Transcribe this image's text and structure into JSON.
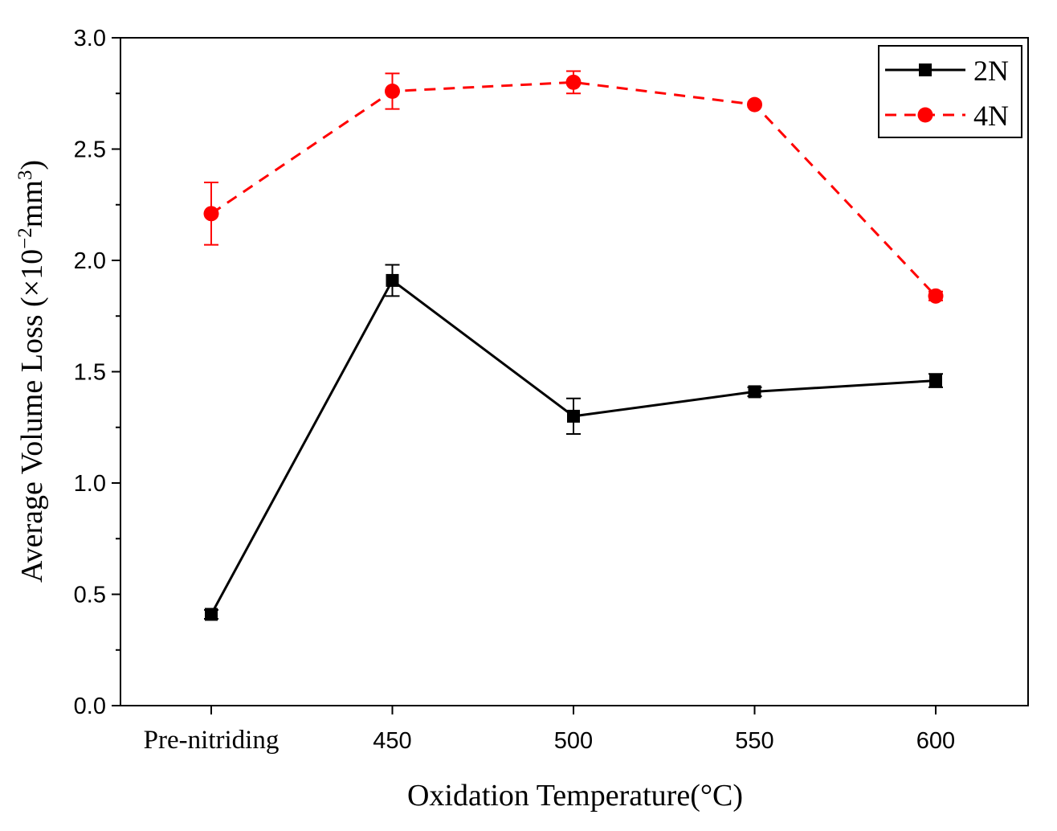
{
  "chart_data": {
    "type": "line",
    "title": "",
    "xlabel": "Oxidation Temperature(°C)",
    "ylabel": {
      "main": "Average Volume Loss (×10",
      "exp1": "−2",
      "unit": "mm",
      "exp2": "3",
      "close": ")"
    },
    "categories": [
      "Pre-nitriding",
      "450",
      "500",
      "550",
      "600"
    ],
    "ylim": [
      0,
      3.0
    ],
    "yticks": [
      "0.0",
      "0.5",
      "1.0",
      "1.5",
      "2.0",
      "2.5",
      "3.0"
    ],
    "legend_position": "top-right",
    "series": [
      {
        "name": "2N",
        "color": "#000000",
        "marker": "square",
        "line": "solid",
        "values": [
          0.41,
          1.91,
          1.3,
          1.41,
          1.46
        ],
        "errors": [
          0.02,
          0.07,
          0.08,
          0.02,
          0.03
        ]
      },
      {
        "name": "4N",
        "color": "#ff0000",
        "marker": "circle",
        "line": "dashed",
        "values": [
          2.21,
          2.76,
          2.8,
          2.7,
          1.84
        ],
        "errors": [
          0.14,
          0.08,
          0.05,
          0.01,
          0.02
        ]
      }
    ]
  }
}
